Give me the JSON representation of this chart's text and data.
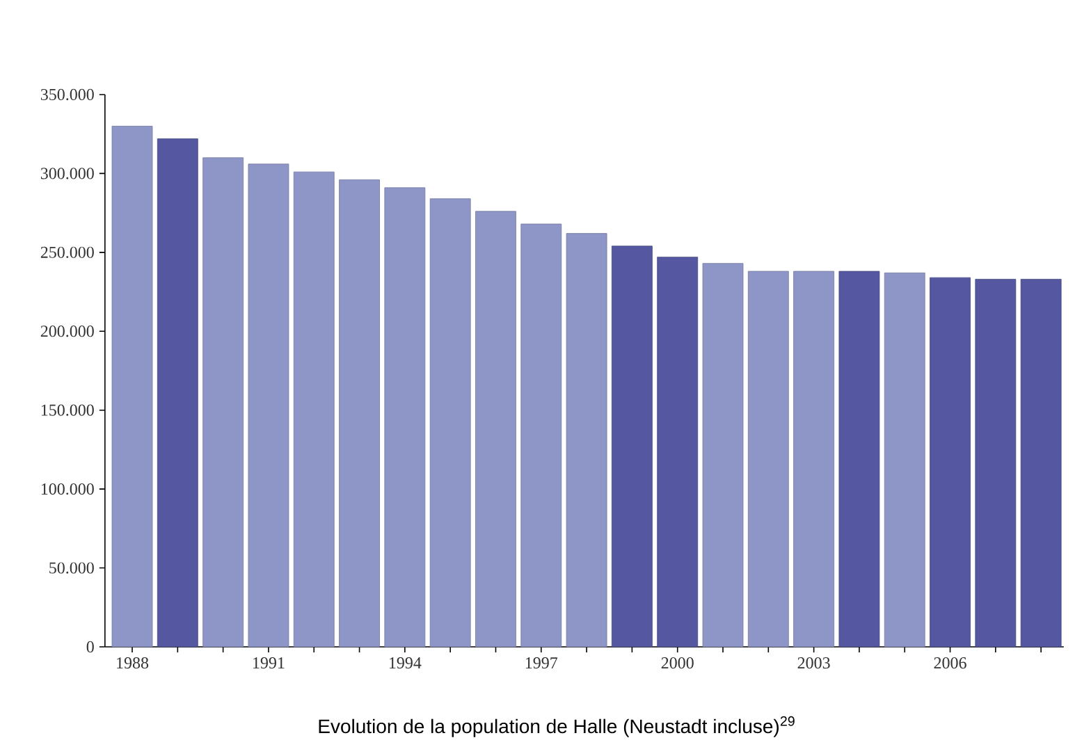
{
  "chart_data": {
    "type": "bar",
    "title": "Evolution de la population de Halle (Neustadt incluse)$^{29}$",
    "categories": [
      "1988",
      null,
      null,
      "1991",
      null,
      null,
      "1994",
      null,
      null,
      "1997",
      null,
      null,
      "2000",
      null,
      null,
      "2003",
      null,
      null,
      "2006",
      null,
      null
    ],
    "values": [
      330000,
      322000,
      310000,
      306000,
      301000,
      296000,
      291000,
      284000,
      276000,
      268000,
      262000,
      254000,
      247000,
      243000,
      238000,
      238000,
      238000,
      237000,
      234000,
      233000,
      233000
    ],
    "colors": [
      "#8e96c8",
      "#5558a0",
      "#8e96c8",
      "#8e96c8",
      "#8e96c8",
      "#8e96c8",
      "#8e96c8",
      "#8e96c8",
      "#8e96c8",
      "#8e96c8",
      "#8e96c8",
      "#5558a0",
      "#5558a0",
      "#8e96c8",
      "#8e96c8",
      "#8e96c8",
      "#5558a0",
      "#8e96c8",
      "#5558a0",
      "#5558a0",
      "#5558a0"
    ],
    "ylim": [
      0,
      350000
    ],
    "yticks": [
      {
        "value": 0,
        "label": "0"
      },
      {
        "value": 50000,
        "label": "50.000"
      },
      {
        "value": 100000,
        "label": "100.000"
      },
      {
        "value": 150000,
        "label": "150.000"
      },
      {
        "value": 200000,
        "label": "200.000"
      },
      {
        "value": 250000,
        "label": "250.000"
      },
      {
        "value": 300000,
        "label": "300.000"
      },
      {
        "value": 350000,
        "label": "350.000"
      }
    ]
  }
}
